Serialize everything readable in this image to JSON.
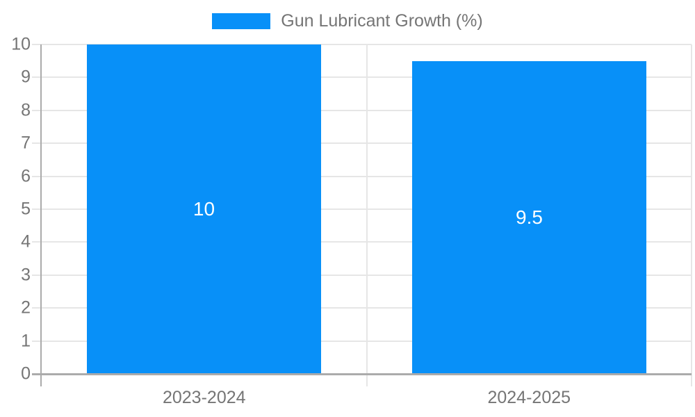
{
  "chart_data": {
    "type": "bar",
    "title": "",
    "legend_label": "Gun Lubricant Growth (%)",
    "legend_position": "top-center",
    "categories": [
      "2023-2024",
      "2024-2025"
    ],
    "series": [
      {
        "name": "Gun Lubricant Growth (%)",
        "values": [
          10,
          9.5
        ]
      }
    ],
    "bar_value_labels": [
      "10",
      "9.5"
    ],
    "xlabel": "",
    "ylabel": "",
    "ylim": [
      0,
      10
    ],
    "ytick_step": 1,
    "ytick_labels": [
      "0",
      "1",
      "2",
      "3",
      "4",
      "5",
      "6",
      "7",
      "8",
      "9",
      "10"
    ],
    "grid": true,
    "colors": {
      "bar": "#0890f8",
      "grid": "#e6e6e6",
      "axis": "#ababab",
      "tick_text": "#757575",
      "value_label": "#ffffff",
      "background": "#ffffff"
    }
  }
}
